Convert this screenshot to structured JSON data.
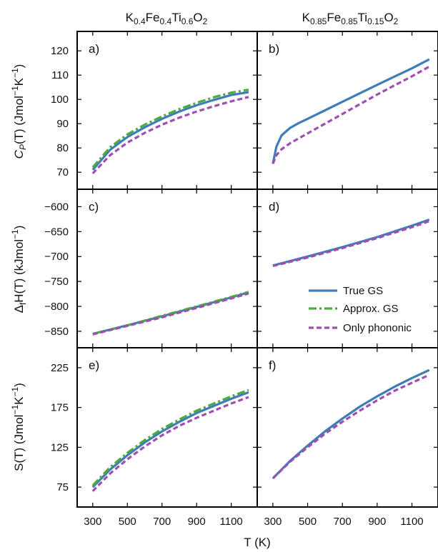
{
  "colors": {
    "true_gs": "#3e7db6",
    "approx_gs": "#4daa3e",
    "only_phonon": "#9e4fb0"
  },
  "legend": {
    "true_gs": "True GS",
    "approx_gs": "Approx. GS",
    "only_phonon": "Only phononic"
  },
  "titles": {
    "left": {
      "pre": "K",
      "s1": "0.4",
      "m1": "Fe",
      "s2": "0.4",
      "m2": "Ti",
      "s3": "0.6",
      "m3": "O",
      "s4": "2"
    },
    "right": {
      "pre": "K",
      "s1": "0.85",
      "m1": "Fe",
      "s2": "0.85",
      "m2": "Ti",
      "s3": "0.15",
      "m3": "O",
      "s4": "2"
    }
  },
  "axis_labels": {
    "x": "T (K)",
    "cp": {
      "a": "C",
      "b": "P",
      "c": "(T) (Jmol",
      "d": "−1",
      "e": "K",
      "f": "−1",
      "g": ")"
    },
    "dh": {
      "a": "Δ",
      "b": "f",
      "c": "H(T) (kJmol",
      "d": "−1",
      "e": ")"
    },
    "s": {
      "a": "S(T) (Jmol",
      "b": "−1",
      "c": "K",
      "d": "−1",
      "e": ")"
    }
  },
  "chart_data": [
    {
      "panel": "a)",
      "type": "line",
      "ylim": [
        63,
        128
      ],
      "yticks": [
        70,
        80,
        90,
        100,
        110,
        120
      ],
      "xticks": [
        300,
        500,
        700,
        900,
        1100
      ],
      "xlim": [
        210,
        1250
      ],
      "x": [
        300,
        400,
        500,
        600,
        700,
        800,
        900,
        1000,
        1100,
        1200
      ],
      "series": [
        {
          "key": "true_gs",
          "values": [
            71.0,
            79.2,
            84.5,
            88.5,
            92.0,
            95.0,
            97.6,
            99.8,
            101.8,
            103.0
          ]
        },
        {
          "key": "approx_gs",
          "values": [
            72.0,
            80.3,
            85.6,
            89.6,
            93.0,
            96.0,
            98.6,
            100.9,
            102.8,
            104.0
          ]
        },
        {
          "key": "only_phonon",
          "values": [
            69.5,
            77.0,
            82.2,
            86.2,
            89.6,
            92.5,
            95.0,
            97.2,
            99.2,
            101.0
          ]
        }
      ]
    },
    {
      "panel": "b)",
      "type": "line",
      "ylim": [
        63,
        128
      ],
      "yticks": [
        70,
        80,
        90,
        100,
        110,
        120
      ],
      "xticks": [
        300,
        500,
        700,
        900,
        1100
      ],
      "xlim": [
        210,
        1250
      ],
      "x": [
        300,
        320,
        350,
        400,
        450,
        500,
        600,
        700,
        800,
        900,
        1000,
        1100,
        1200
      ],
      "series": [
        {
          "key": "true_gs",
          "values": [
            73.5,
            80.5,
            85.2,
            88.3,
            90.3,
            92.0,
            95.5,
            99.0,
            102.5,
            106.0,
            109.4,
            112.8,
            116.5
          ]
        },
        {
          "key": "only_phonon",
          "values": [
            73.5,
            77.0,
            79.5,
            82.0,
            84.0,
            86.0,
            90.0,
            94.0,
            98.0,
            102.0,
            105.8,
            109.5,
            113.5
          ]
        }
      ]
    },
    {
      "panel": "c)",
      "type": "line",
      "ylim": [
        -883,
        -565
      ],
      "yticks": [
        -600,
        -650,
        -700,
        -750,
        -800,
        -850
      ],
      "xticks": [
        300,
        500,
        700,
        900,
        1100
      ],
      "xlim": [
        210,
        1250
      ],
      "x": [
        300,
        500,
        700,
        900,
        1100,
        1200
      ],
      "series": [
        {
          "key": "true_gs",
          "values": [
            -855,
            -838,
            -820,
            -801,
            -782,
            -772
          ]
        },
        {
          "key": "approx_gs",
          "values": [
            -855,
            -838,
            -819,
            -800,
            -781,
            -771
          ]
        },
        {
          "key": "only_phonon",
          "values": [
            -856,
            -839,
            -822,
            -803,
            -784,
            -774
          ]
        }
      ]
    },
    {
      "panel": "d)",
      "type": "line",
      "ylim": [
        -883,
        -565
      ],
      "yticks": [
        -600,
        -650,
        -700,
        -750,
        -800,
        -850
      ],
      "xticks": [
        300,
        500,
        700,
        900,
        1100
      ],
      "xlim": [
        210,
        1250
      ],
      "x": [
        300,
        500,
        700,
        900,
        1100,
        1200
      ],
      "series": [
        {
          "key": "true_gs",
          "values": [
            -718,
            -700,
            -681,
            -661,
            -638,
            -626
          ]
        },
        {
          "key": "only_phonon",
          "values": [
            -719,
            -702,
            -683,
            -663,
            -641,
            -629
          ]
        }
      ]
    },
    {
      "panel": "e)",
      "type": "line",
      "ylim": [
        50,
        250
      ],
      "yticks": [
        75,
        125,
        175,
        225
      ],
      "xticks": [
        300,
        500,
        700,
        900,
        1100
      ],
      "xlim": [
        210,
        1250
      ],
      "x": [
        300,
        400,
        500,
        600,
        700,
        800,
        900,
        1000,
        1100,
        1200
      ],
      "series": [
        {
          "key": "true_gs",
          "values": [
            75,
            97,
            115,
            131,
            145,
            157,
            168,
            177,
            186,
            194
          ]
        },
        {
          "key": "approx_gs",
          "values": [
            77,
            100,
            118,
            134,
            148,
            160,
            171,
            180,
            189,
            197
          ]
        },
        {
          "key": "only_phonon",
          "values": [
            70,
            92,
            110,
            126,
            140,
            152,
            162,
            171,
            180,
            188
          ]
        }
      ]
    },
    {
      "panel": "f)",
      "type": "line",
      "ylim": [
        50,
        250
      ],
      "yticks": [
        75,
        125,
        175,
        225
      ],
      "xticks": [
        300,
        500,
        700,
        900,
        1100
      ],
      "xlim": [
        210,
        1250
      ],
      "x": [
        300,
        400,
        500,
        600,
        700,
        800,
        900,
        1000,
        1100,
        1200
      ],
      "series": [
        {
          "key": "true_gs",
          "values": [
            86,
            108,
            127,
            145,
            161,
            176,
            189,
            201,
            212,
            222
          ]
        },
        {
          "key": "only_phonon",
          "values": [
            86,
            107,
            125,
            142,
            157,
            171,
            184,
            196,
            206,
            216
          ]
        }
      ]
    }
  ]
}
